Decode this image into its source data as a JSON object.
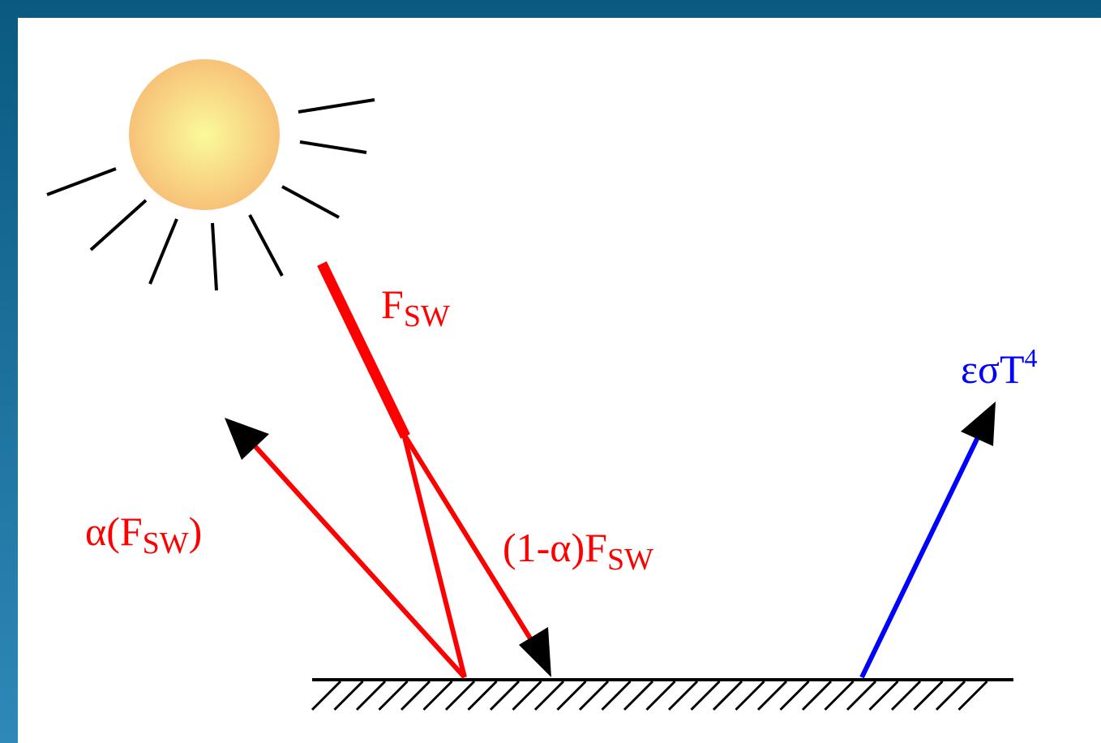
{
  "labels": {
    "incoming": {
      "base": "F",
      "sub": "SW"
    },
    "reflected": {
      "pre": "α(F",
      "sub": "SW",
      "post": ")"
    },
    "absorbed": {
      "pre": "(1-α)F",
      "sub": "SW"
    },
    "emitted": {
      "base": "εσT",
      "sup": "4"
    }
  }
}
